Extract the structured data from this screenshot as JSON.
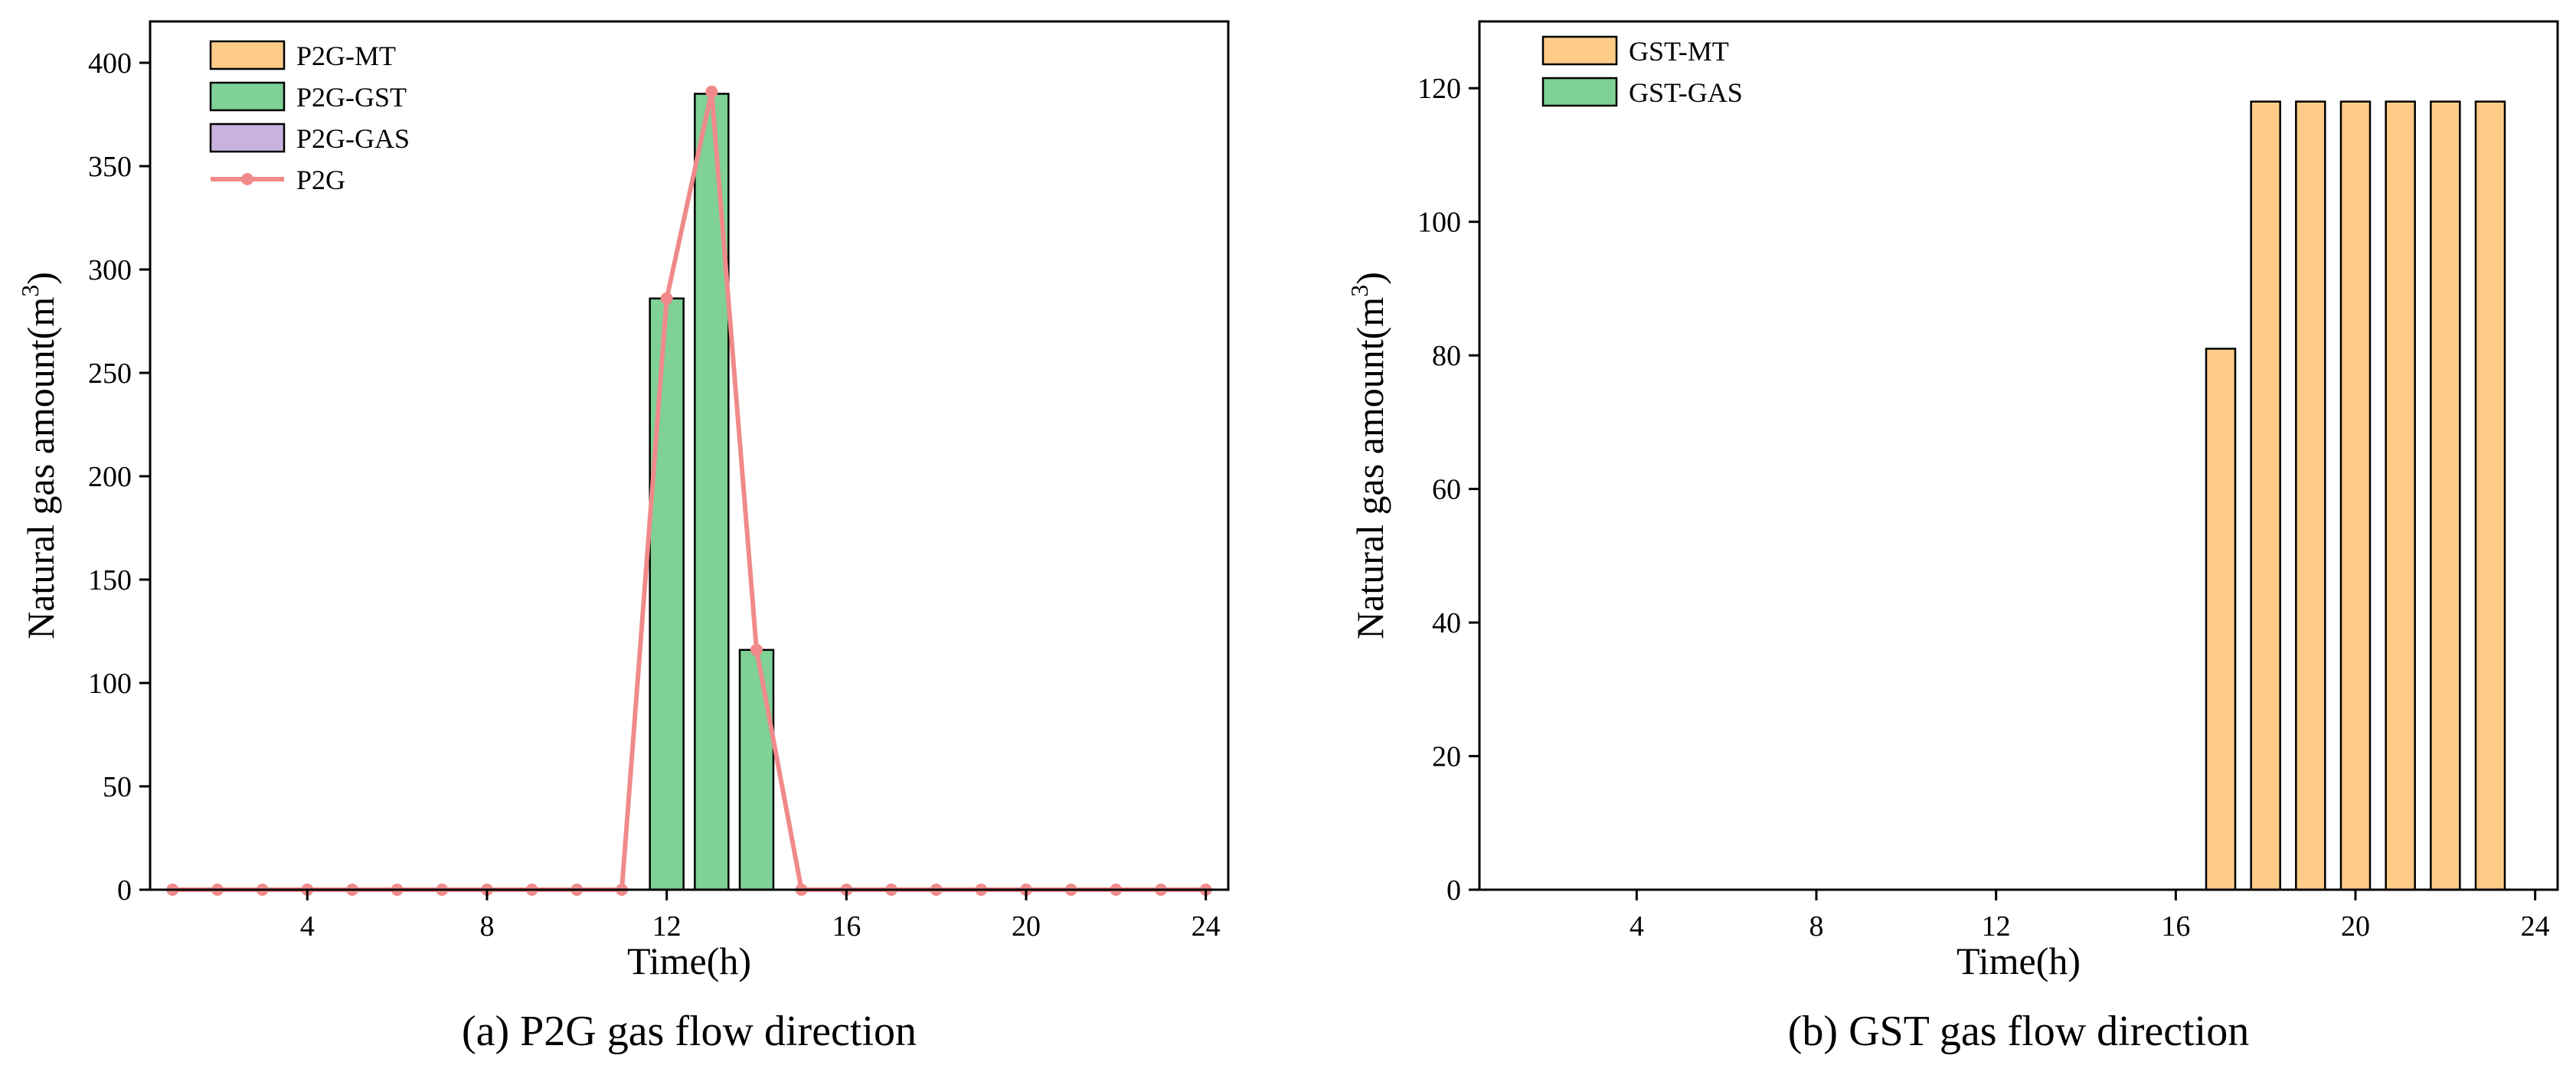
{
  "colors": {
    "mt": "#ffcc88",
    "gst": "#7fd195",
    "gas": "#c9b3de",
    "p2g_line": "#f08a8a",
    "axis": "#000000"
  },
  "chart_data": [
    {
      "type": "bar",
      "caption": "(a) P2G gas flow direction",
      "xlabel": "Time(h)",
      "ylabel": "Natural gas amount(m",
      "ylabel_sup": "3",
      "ylabel_end": ")",
      "xlim": [
        0.5,
        24.5
      ],
      "ylim": [
        0,
        420
      ],
      "xticks": [
        4,
        8,
        12,
        16,
        20,
        24
      ],
      "yticks": [
        0,
        50,
        100,
        150,
        200,
        250,
        300,
        350,
        400
      ],
      "x": [
        1,
        2,
        3,
        4,
        5,
        6,
        7,
        8,
        9,
        10,
        11,
        12,
        13,
        14,
        15,
        16,
        17,
        18,
        19,
        20,
        21,
        22,
        23,
        24
      ],
      "bar_series": [
        {
          "name": "P2G-MT",
          "color_key": "mt",
          "values": [
            0,
            0,
            0,
            0,
            0,
            0,
            0,
            0,
            0,
            0,
            0,
            0,
            0,
            0,
            0,
            0,
            0,
            0,
            0,
            0,
            0,
            0,
            0,
            0
          ]
        },
        {
          "name": "P2G-GST",
          "color_key": "gst",
          "values": [
            0,
            0,
            0,
            0,
            0,
            0,
            0,
            0,
            0,
            0,
            0,
            286,
            385,
            116,
            0,
            0,
            0,
            0,
            0,
            0,
            0,
            0,
            0,
            0
          ]
        },
        {
          "name": "P2G-GAS",
          "color_key": "gas",
          "values": [
            0,
            0,
            0,
            0,
            0,
            0,
            0,
            0,
            0,
            0,
            0,
            0,
            0,
            0,
            0,
            0,
            0,
            0,
            0,
            0,
            0,
            0,
            0,
            0
          ]
        }
      ],
      "line_series": [
        {
          "name": "P2G",
          "color_key": "p2g_line",
          "values": [
            0,
            0,
            0,
            0,
            0,
            0,
            0,
            0,
            0,
            0,
            0,
            286,
            386,
            116,
            0,
            0,
            0,
            0,
            0,
            0,
            0,
            0,
            0,
            0
          ]
        }
      ],
      "legend": [
        {
          "label": "P2G-MT",
          "kind": "bar",
          "color_key": "mt"
        },
        {
          "label": "P2G-GST",
          "kind": "bar",
          "color_key": "gst"
        },
        {
          "label": "P2G-GAS",
          "kind": "bar",
          "color_key": "gas"
        },
        {
          "label": "P2G",
          "kind": "line",
          "color_key": "p2g_line"
        }
      ],
      "legend_position": "top-left"
    },
    {
      "type": "bar",
      "caption": "(b) GST gas flow direction",
      "xlabel": "Time(h)",
      "ylabel": "Natural gas amount(m",
      "ylabel_sup": "3",
      "ylabel_end": ")",
      "xlim": [
        0.5,
        24.5
      ],
      "ylim": [
        0,
        130
      ],
      "xticks": [
        4,
        8,
        12,
        16,
        20,
        24
      ],
      "yticks": [
        0,
        20,
        40,
        60,
        80,
        100,
        120
      ],
      "x": [
        1,
        2,
        3,
        4,
        5,
        6,
        7,
        8,
        9,
        10,
        11,
        12,
        13,
        14,
        15,
        16,
        17,
        18,
        19,
        20,
        21,
        22,
        23,
        24
      ],
      "bar_series": [
        {
          "name": "GST-MT",
          "color_key": "mt",
          "values": [
            0,
            0,
            0,
            0,
            0,
            0,
            0,
            0,
            0,
            0,
            0,
            0,
            0,
            0,
            0,
            0,
            81,
            118,
            118,
            118,
            118,
            118,
            118,
            0
          ]
        },
        {
          "name": "GST-GAS",
          "color_key": "gst",
          "values": [
            0,
            0,
            0,
            0,
            0,
            0,
            0,
            0,
            0,
            0,
            0,
            0,
            0,
            0,
            0,
            0,
            0,
            0,
            0,
            0,
            0,
            0,
            0,
            0
          ]
        }
      ],
      "line_series": [],
      "legend": [
        {
          "label": "GST-MT",
          "kind": "bar",
          "color_key": "mt"
        },
        {
          "label": "GST-GAS",
          "kind": "bar",
          "color_key": "gst"
        }
      ],
      "legend_position": "top-left"
    }
  ]
}
